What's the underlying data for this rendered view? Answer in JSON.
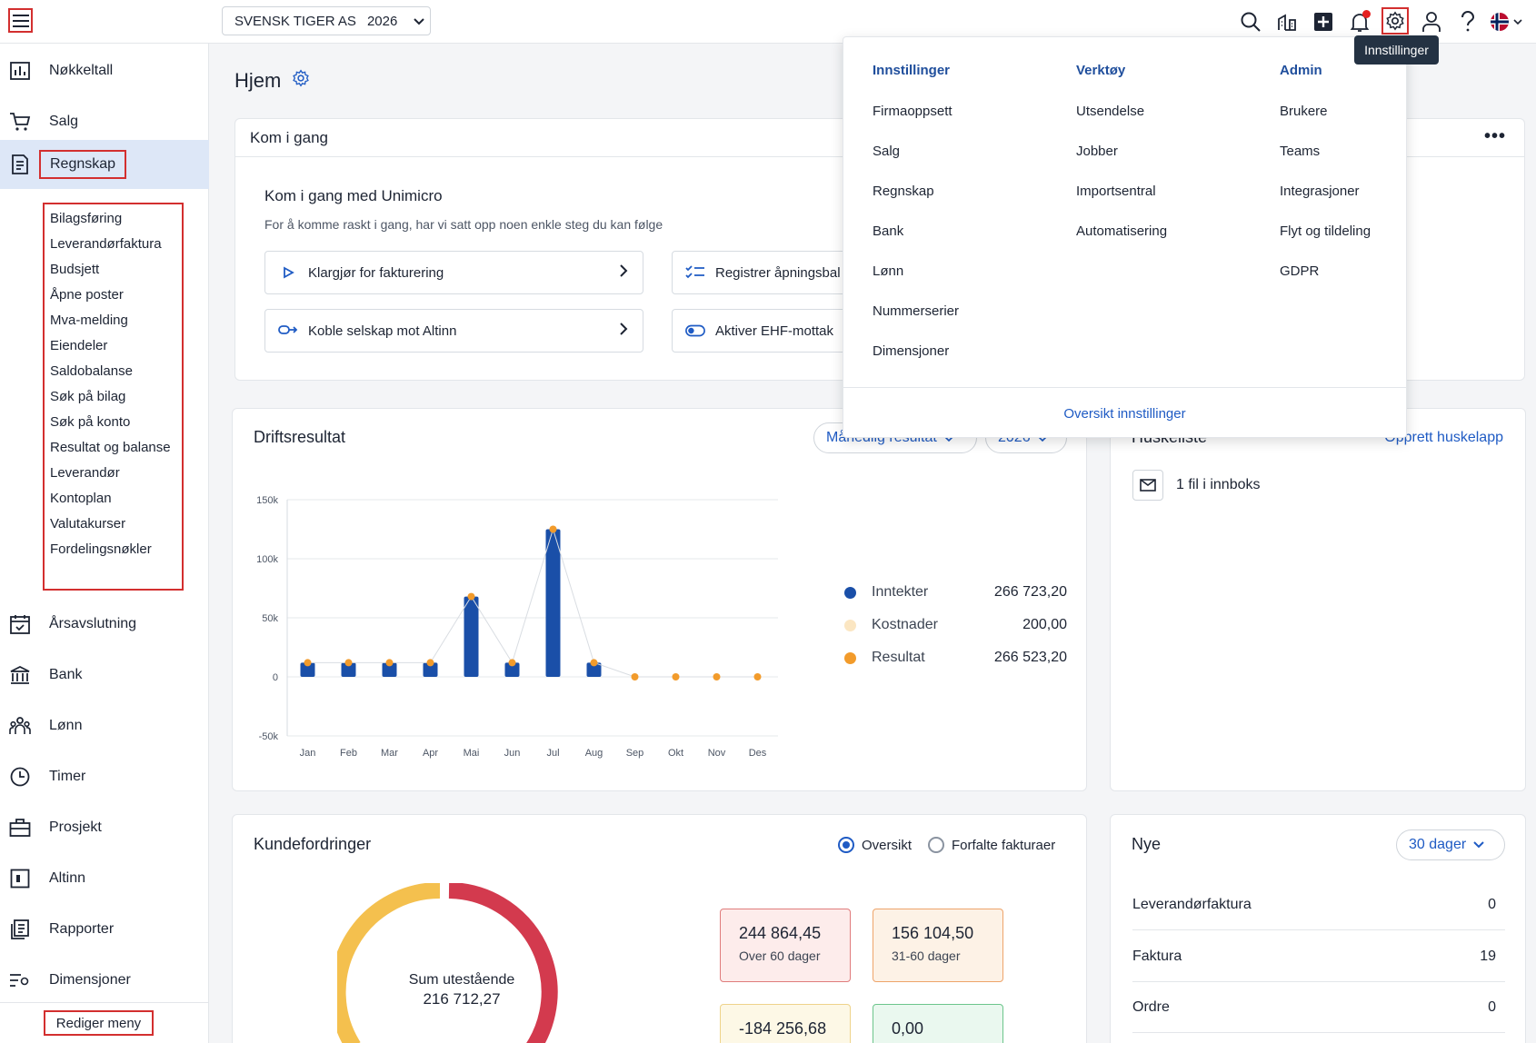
{
  "header": {
    "company_name": "SVENSK TIGER AS",
    "year": "2026",
    "tooltip": "Innstillinger"
  },
  "sidebar": {
    "items": [
      {
        "label": "Nøkkeltall",
        "icon": "chart-icon"
      },
      {
        "label": "Salg",
        "icon": "cart-icon"
      },
      {
        "label": "Regnskap",
        "icon": "ledger-icon"
      },
      {
        "label": "Årsavslutning",
        "icon": "calendar-check-icon"
      },
      {
        "label": "Bank",
        "icon": "bank-icon"
      },
      {
        "label": "Lønn",
        "icon": "people-icon"
      },
      {
        "label": "Timer",
        "icon": "clock-icon"
      },
      {
        "label": "Prosjekt",
        "icon": "briefcase-icon"
      },
      {
        "label": "Altinn",
        "icon": "altinn-icon"
      },
      {
        "label": "Rapporter",
        "icon": "reports-icon"
      },
      {
        "label": "Dimensjoner",
        "icon": "dimensions-icon"
      }
    ],
    "submenu": [
      "Bilagsføring",
      "Leverandørfaktura",
      "Budsjett",
      "Åpne poster",
      "Mva-melding",
      "Eiendeler",
      "Saldobalanse",
      "Søk på bilag",
      "Søk på konto",
      "Resultat og balanse",
      "Leverandør",
      "Kontoplan",
      "Valutakurser",
      "Fordelingsnøkler"
    ],
    "edit_menu": "Rediger meny"
  },
  "page": {
    "title": "Hjem"
  },
  "getting_started": {
    "card_title": "Kom i gang",
    "heading": "Kom i gang med Unimicro",
    "description": "For å komme raskt i gang, har vi satt opp noen enkle steg du kan følge",
    "steps": [
      "Klargjør for fakturering",
      "Registrer åpningsbal",
      "Koble selskap mot Altinn",
      "Aktiver EHF-mottak"
    ]
  },
  "settings_menu": {
    "columns": [
      {
        "heading": "Innstillinger",
        "items": [
          "Firmaoppsett",
          "Salg",
          "Regnskap",
          "Bank",
          "Lønn",
          "Nummerserier",
          "Dimensjoner"
        ]
      },
      {
        "heading": "Verktøy",
        "items": [
          "Utsendelse",
          "Jobber",
          "Importsentral",
          "Automatisering"
        ]
      },
      {
        "heading": "Admin",
        "items": [
          "Brukere",
          "Teams",
          "Integrasjoner",
          "Flyt og tildeling",
          "GDPR"
        ]
      }
    ],
    "footer_link": "Oversikt innstillinger"
  },
  "driftsresultat": {
    "title": "Driftsresultat",
    "period_select": "Månedlig resultat",
    "year_select": "2026",
    "legend": [
      {
        "name": "Inntekter",
        "value": "266 723,20",
        "color": "#1a4fa8"
      },
      {
        "name": "Kostnader",
        "value": "200,00",
        "color": "#fbe6c2"
      },
      {
        "name": "Resultat",
        "value": "266 523,20",
        "color": "#f29b2b"
      }
    ]
  },
  "chart_data": {
    "type": "bar",
    "categories": [
      "Jan",
      "Feb",
      "Mar",
      "Apr",
      "Mai",
      "Jun",
      "Jul",
      "Aug",
      "Sep",
      "Okt",
      "Nov",
      "Des"
    ],
    "series": [
      {
        "name": "Inntekter",
        "type": "bar",
        "values": [
          12000,
          12000,
          12000,
          12000,
          68000,
          12000,
          125000,
          12000,
          0,
          0,
          0,
          0
        ]
      },
      {
        "name": "Resultat",
        "type": "line",
        "values": [
          12000,
          12000,
          12000,
          12000,
          68000,
          12000,
          125000,
          12000,
          0,
          0,
          0,
          0
        ]
      }
    ],
    "y_ticks": [
      "150k",
      "100k",
      "50k",
      "0",
      "-50k"
    ],
    "ylim": [
      -50000,
      150000
    ],
    "grid": true
  },
  "huskeliste": {
    "title": "Huskeliste",
    "create_link": "Opprett huskelapp",
    "inbox_text": "1 fil i innboks"
  },
  "kundefordringer": {
    "title": "Kundefordringer",
    "radio_overview": "Oversikt",
    "radio_overdue": "Forfalte fakturaer",
    "donut_label": "Sum utestående",
    "donut_value": "216 712,27",
    "boxes": [
      {
        "value": "244 864,45",
        "label": "Over 60 dager"
      },
      {
        "value": "156 104,50",
        "label": "31-60 dager"
      },
      {
        "value": "-184 256,68",
        "label": ""
      },
      {
        "value": "0,00",
        "label": ""
      }
    ]
  },
  "nye": {
    "title": "Nye",
    "period": "30 dager",
    "rows": [
      {
        "label": "Leverandørfaktura",
        "value": "0"
      },
      {
        "label": "Faktura",
        "value": "19"
      },
      {
        "label": "Ordre",
        "value": "0"
      }
    ]
  }
}
